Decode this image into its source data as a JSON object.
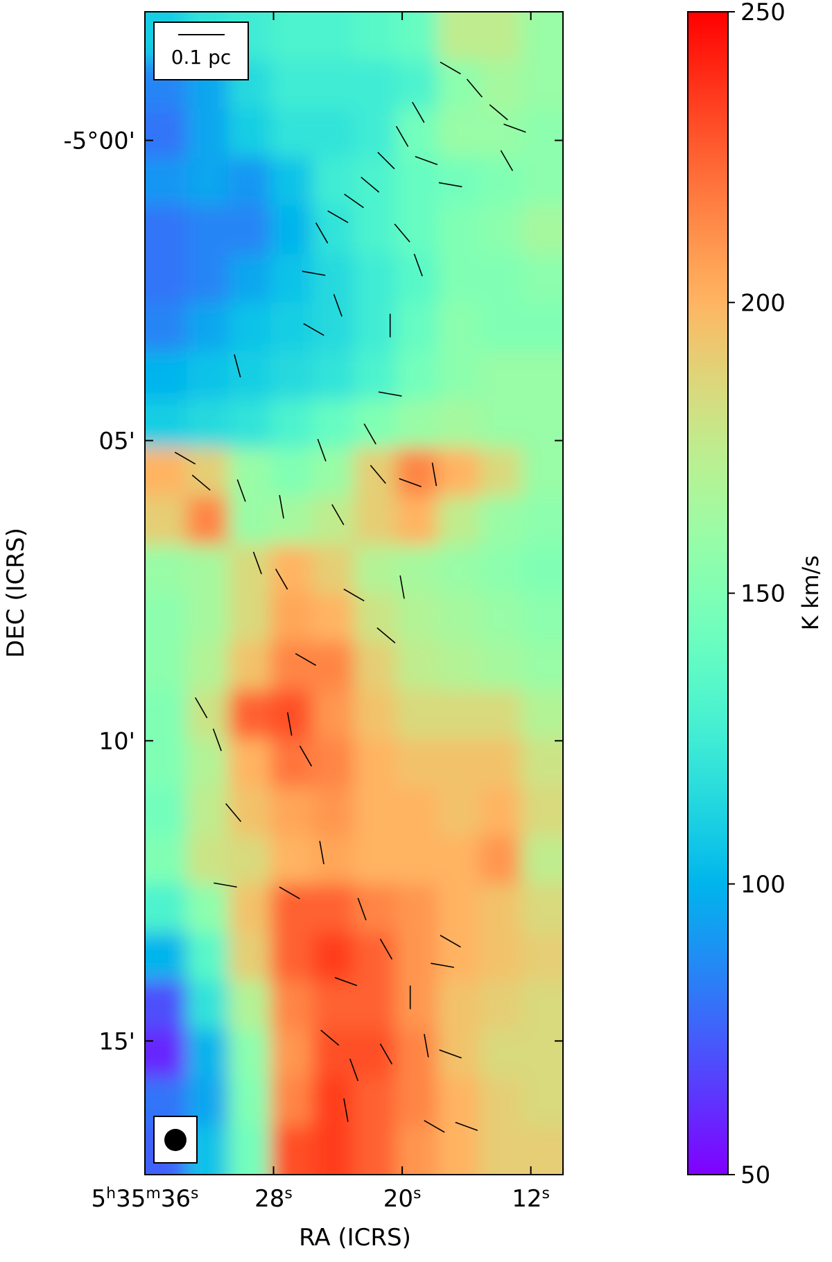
{
  "chart_data": {
    "type": "heatmap",
    "colormap": "rainbow",
    "x_label": "RA (ICRS)",
    "y_label": "DEC (ICRS)",
    "colorbar_label": "K km/s",
    "scalebar_label": "0.1 pc",
    "xlim": [
      36,
      10
    ],
    "ylim": [
      -5.2871,
      -4.9643
    ],
    "xticks": [
      {
        "value": 36,
        "label": "5h35m36s"
      },
      {
        "value": 28,
        "label": "28s"
      },
      {
        "value": 20,
        "label": "20s"
      },
      {
        "value": 12,
        "label": "12s"
      }
    ],
    "yticks": [
      {
        "value": -5.0,
        "label": "-5°00'"
      },
      {
        "value": -5.083333,
        "label": "05'"
      },
      {
        "value": -5.166667,
        "label": "10'"
      },
      {
        "value": -5.25,
        "label": "15'"
      }
    ],
    "clim": [
      50,
      250
    ],
    "cticks": [
      50,
      100,
      150,
      200,
      250
    ],
    "z": [
      [
        110,
        120,
        125,
        130,
        130,
        135,
        140,
        175,
        175,
        160
      ],
      [
        85,
        95,
        115,
        125,
        125,
        125,
        130,
        155,
        165,
        160
      ],
      [
        80,
        95,
        110,
        120,
        120,
        125,
        145,
        160,
        160,
        155
      ],
      [
        90,
        95,
        90,
        105,
        125,
        130,
        140,
        145,
        150,
        155
      ],
      [
        80,
        85,
        85,
        100,
        120,
        130,
        140,
        150,
        155,
        165
      ],
      [
        80,
        85,
        95,
        105,
        115,
        125,
        135,
        150,
        150,
        155
      ],
      [
        85,
        95,
        105,
        110,
        115,
        125,
        140,
        155,
        150,
        150
      ],
      [
        100,
        105,
        110,
        115,
        120,
        130,
        145,
        155,
        160,
        160
      ],
      [
        110,
        115,
        120,
        130,
        140,
        150,
        160,
        165,
        160,
        160
      ],
      [
        200,
        190,
        160,
        150,
        160,
        190,
        215,
        200,
        185,
        160
      ],
      [
        190,
        215,
        160,
        165,
        175,
        190,
        200,
        175,
        160,
        155
      ],
      [
        160,
        165,
        185,
        200,
        190,
        170,
        165,
        160,
        155,
        150
      ],
      [
        155,
        165,
        185,
        205,
        200,
        180,
        170,
        165,
        160,
        155
      ],
      [
        155,
        170,
        195,
        215,
        215,
        190,
        175,
        170,
        165,
        160
      ],
      [
        150,
        180,
        225,
        230,
        210,
        195,
        185,
        185,
        185,
        170
      ],
      [
        150,
        170,
        200,
        220,
        215,
        200,
        195,
        195,
        195,
        180
      ],
      [
        145,
        175,
        195,
        205,
        210,
        200,
        200,
        195,
        200,
        185
      ],
      [
        150,
        180,
        185,
        200,
        205,
        200,
        200,
        200,
        210,
        175
      ],
      [
        130,
        155,
        195,
        225,
        225,
        215,
        210,
        200,
        195,
        185
      ],
      [
        100,
        135,
        190,
        225,
        235,
        225,
        210,
        200,
        195,
        190
      ],
      [
        70,
        120,
        170,
        215,
        225,
        225,
        210,
        195,
        190,
        185
      ],
      [
        60,
        100,
        155,
        210,
        230,
        230,
        215,
        195,
        185,
        185
      ],
      [
        80,
        95,
        150,
        215,
        235,
        225,
        215,
        200,
        190,
        185
      ],
      [
        75,
        105,
        145,
        230,
        235,
        225,
        210,
        200,
        190,
        190
      ]
    ],
    "vectors": {
      "color": "#000000",
      "x": [
        17.0,
        15.5,
        14.0,
        13.0,
        13.5,
        19.0,
        20.0,
        21.0,
        22.0,
        23.0,
        24.0,
        25.0,
        18.5,
        17.0,
        20.0,
        19.0,
        25.5,
        24.0,
        25.5,
        20.75,
        30.25,
        20.75,
        22.0,
        25.0,
        33.5,
        32.5,
        30.0,
        27.5,
        24.0,
        21.5,
        19.5,
        18.0,
        29.0,
        27.5,
        23.0,
        20.0,
        21.0,
        26.0,
        32.5,
        31.5,
        27.0,
        26.0,
        30.5,
        25.0,
        31.0,
        27.0,
        22.5,
        21.0,
        17.0,
        23.5,
        17.5,
        24.5,
        23.0,
        21.0,
        18.5,
        17.0,
        18.0,
        16.0,
        23.5,
        19.5
      ],
      "y": [
        -4.9799,
        -4.9855,
        -4.9922,
        -4.9966,
        -5.0056,
        -4.9922,
        -4.9989,
        -5.0056,
        -5.0123,
        -5.0168,
        -5.0212,
        -5.0257,
        -5.0056,
        -5.0123,
        -5.0257,
        -5.0346,
        -5.0369,
        -5.0458,
        -5.0525,
        -5.0514,
        -5.0626,
        -5.0704,
        -5.0815,
        -5.086,
        -5.0882,
        -5.095,
        -5.0972,
        -5.1017,
        -5.1039,
        -5.0927,
        -5.095,
        -5.0927,
        -5.1173,
        -5.1218,
        -5.1262,
        -5.124,
        -5.1374,
        -5.1441,
        -5.1575,
        -5.1664,
        -5.162,
        -5.1709,
        -5.1866,
        -5.1977,
        -5.2067,
        -5.2089,
        -5.2134,
        -5.2245,
        -5.2223,
        -5.2335,
        -5.229,
        -5.2491,
        -5.258,
        -5.2536,
        -5.2513,
        -5.2536,
        -5.2737,
        -5.2737,
        -5.2692,
        -5.2379
      ],
      "angle": [
        60,
        40,
        50,
        70,
        30,
        30,
        30,
        45,
        50,
        55,
        60,
        30,
        70,
        80,
        40,
        20,
        80,
        20,
        60,
        0,
        15,
        80,
        30,
        20,
        60,
        50,
        20,
        10,
        30,
        40,
        70,
        10,
        20,
        30,
        60,
        10,
        50,
        60,
        30,
        20,
        10,
        30,
        40,
        10,
        80,
        60,
        20,
        30,
        60,
        70,
        80,
        50,
        20,
        30,
        10,
        70,
        60,
        70,
        10,
        0
      ]
    }
  }
}
